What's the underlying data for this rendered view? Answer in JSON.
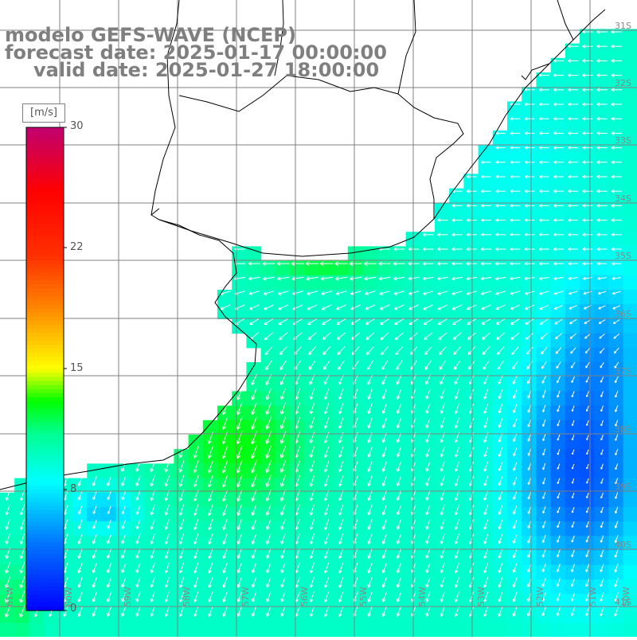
{
  "header": {
    "model_line": "modelo GEFS-WAVE (NCEP)",
    "forecast_line": "forecast date: 2025-01-17 00:00:00",
    "valid_line": "valid date: 2025-01-27 18:00:00"
  },
  "colorbar": {
    "unit": "[m/s]",
    "ticks": [
      "30",
      "22",
      "15",
      "8",
      "0"
    ],
    "min": 0,
    "max": 30,
    "colors": [
      "#0000ff",
      "#00a0ff",
      "#00ffff",
      "#00ff40",
      "#ffff00",
      "#ff8000",
      "#ff0000",
      "#c00070"
    ]
  },
  "map": {
    "lat_labels": [
      "31S",
      "32S",
      "33S",
      "34S",
      "35S",
      "36S",
      "37S",
      "38S",
      "39S",
      "40S",
      "41S"
    ],
    "lon_labels": [
      "61W",
      "60W",
      "59W",
      "58W",
      "57W",
      "56W",
      "55W",
      "54W",
      "53W",
      "52W",
      "51W",
      "50W"
    ],
    "arrow_color": "#ffffff",
    "land_color": "#ffffff",
    "grid_color": "#808080"
  }
}
